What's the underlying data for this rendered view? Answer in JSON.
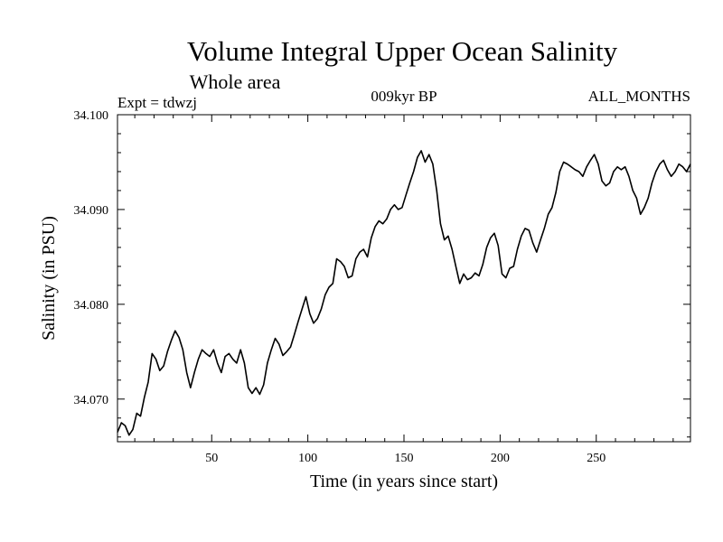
{
  "chart_data": {
    "type": "line",
    "title": "Volume Integral Upper Ocean Salinity",
    "subtitle": "Whole area",
    "header_left": "Expt = tdwzj",
    "header_center": "009kyr BP",
    "header_right": "ALL_MONTHS",
    "xlabel": "Time (in years since start)",
    "ylabel": "Salinity (in PSU)",
    "xlim": [
      1,
      299
    ],
    "ylim": [
      34.0655,
      34.1
    ],
    "xticks": [
      50,
      100,
      150,
      200,
      250
    ],
    "yticks": [
      34.07,
      34.08,
      34.09,
      34.1
    ],
    "ytick_labels": [
      "34.070",
      "34.080",
      "34.090",
      "34.100"
    ],
    "grid": false,
    "series": [
      {
        "x": [
          1,
          3,
          5,
          7,
          9,
          11,
          13,
          15,
          17,
          19,
          21,
          23,
          25,
          27,
          29,
          31,
          33,
          35,
          37,
          39,
          41,
          43,
          45,
          47,
          49,
          51,
          53,
          55,
          57,
          59,
          61,
          63,
          65,
          67,
          69,
          71,
          73,
          75,
          77,
          79,
          81,
          83,
          85,
          87,
          89,
          91,
          93,
          95,
          97,
          99,
          101,
          103,
          105,
          107,
          109,
          111,
          113,
          115,
          117,
          119,
          121,
          123,
          125,
          127,
          129,
          131,
          133,
          135,
          137,
          139,
          141,
          143,
          145,
          147,
          149,
          151,
          153,
          155,
          157,
          159,
          161,
          163,
          165,
          167,
          169,
          171,
          173,
          175,
          177,
          179,
          181,
          183,
          185,
          187,
          189,
          191,
          193,
          195,
          197,
          199,
          201,
          203,
          205,
          207,
          209,
          211,
          213,
          215,
          217,
          219,
          221,
          223,
          225,
          227,
          229,
          231,
          233,
          235,
          237,
          239,
          241,
          243,
          245,
          247,
          249,
          251,
          253,
          255,
          257,
          259,
          261,
          263,
          265,
          267,
          269,
          271,
          273,
          275,
          277,
          279,
          281,
          283,
          285,
          287,
          289,
          291,
          293,
          295,
          297,
          299
        ],
        "y": [
          34.0665,
          34.0675,
          34.0672,
          34.0662,
          34.0668,
          34.0685,
          34.0682,
          34.0702,
          34.0718,
          34.0748,
          34.0742,
          34.073,
          34.0735,
          34.075,
          34.0762,
          34.0772,
          34.0765,
          34.0752,
          34.0728,
          34.0712,
          34.0728,
          34.0742,
          34.0752,
          34.0748,
          34.0745,
          34.0752,
          34.0738,
          34.0728,
          34.0745,
          34.0748,
          34.0742,
          34.0738,
          34.0752,
          34.0738,
          34.0712,
          34.0706,
          34.0712,
          34.0705,
          34.0715,
          34.0738,
          34.0752,
          34.0764,
          34.0758,
          34.0746,
          34.075,
          34.0755,
          34.0768,
          34.0782,
          34.0795,
          34.0808,
          34.079,
          34.078,
          34.0785,
          34.0795,
          34.081,
          34.0818,
          34.0822,
          34.0848,
          34.0845,
          34.084,
          34.0828,
          34.083,
          34.0848,
          34.0855,
          34.0858,
          34.085,
          34.087,
          34.0882,
          34.0888,
          34.0885,
          34.089,
          34.09,
          34.0905,
          34.09,
          34.0902,
          34.0915,
          34.0928,
          34.094,
          34.0955,
          34.0962,
          34.095,
          34.0958,
          34.0948,
          34.092,
          34.0885,
          34.0868,
          34.0872,
          34.0858,
          34.084,
          34.0822,
          34.0832,
          34.0826,
          34.0828,
          34.0833,
          34.083,
          34.0842,
          34.086,
          34.087,
          34.0875,
          34.0862,
          34.0832,
          34.0828,
          34.0838,
          34.084,
          34.0858,
          34.0872,
          34.088,
          34.0878,
          34.0865,
          34.0855,
          34.0868,
          34.088,
          34.0895,
          34.0902,
          34.0918,
          34.094,
          34.095,
          34.0948,
          34.0945,
          34.0942,
          34.094,
          34.0935,
          34.0945,
          34.0952,
          34.0958,
          34.0948,
          34.093,
          34.0925,
          34.0928,
          34.094,
          34.0945,
          34.0942,
          34.0945,
          34.0935,
          34.092,
          34.0912,
          34.0895,
          34.0902,
          34.0912,
          34.0928,
          34.094,
          34.0948,
          34.0952,
          34.0942,
          34.0935,
          34.094,
          34.0948,
          34.0945,
          34.094,
          34.0948
        ]
      }
    ]
  }
}
